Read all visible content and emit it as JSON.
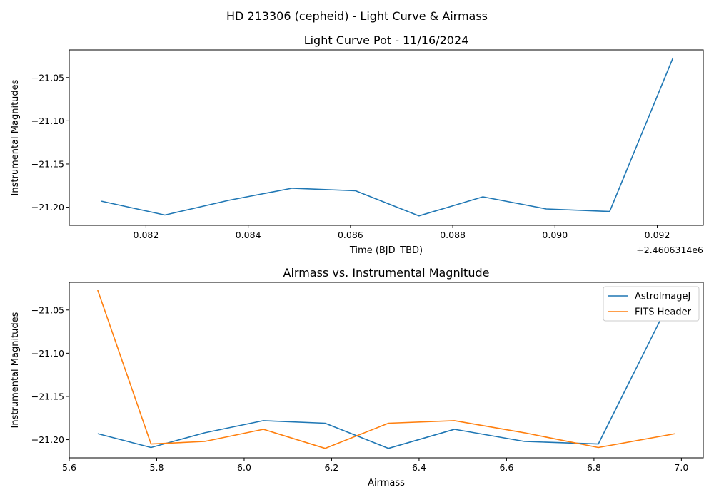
{
  "figure": {
    "suptitle": "HD 213306 (cepheid) - Light Curve & Airmass"
  },
  "chart_data": [
    {
      "type": "line",
      "title": "Light Curve Pot - 11/16/2024",
      "xlabel": "Time (BJD_TBD)",
      "ylabel": "Instrumental Magnitudes",
      "x_offset_label": "+2.4606314e6",
      "xlim": [
        0.0805,
        0.0929
      ],
      "ylim": [
        -21.221,
        -21.018
      ],
      "xticks": [
        0.082,
        0.084,
        0.086,
        0.088,
        0.09,
        0.092
      ],
      "xtick_labels": [
        "0.082",
        "0.084",
        "0.086",
        "0.088",
        "0.090",
        "0.092"
      ],
      "yticks": [
        -21.05,
        -21.1,
        -21.15,
        -21.2
      ],
      "ytick_labels": [
        "−21.05",
        "−21.10",
        "−21.15",
        "−21.20"
      ],
      "grid": false,
      "series": [
        {
          "color": "#1f77b4",
          "x": [
            0.08113,
            0.08237,
            0.08362,
            0.08486,
            0.0861,
            0.08734,
            0.08859,
            0.08983,
            0.09107,
            0.09231
          ],
          "y": [
            -21.193,
            -21.209,
            -21.192,
            -21.178,
            -21.181,
            -21.21,
            -21.188,
            -21.202,
            -21.205,
            -21.027
          ]
        }
      ]
    },
    {
      "type": "line",
      "title": "Airmass vs. Instrumental Magnitude",
      "xlabel": "Airmass",
      "ylabel": "Instrumental Magnitudes",
      "xlim": [
        5.6,
        7.05
      ],
      "ylim": [
        -21.221,
        -21.018
      ],
      "xticks": [
        5.6,
        5.8,
        6.0,
        6.2,
        6.4,
        6.6,
        6.8,
        7.0
      ],
      "xtick_labels": [
        "5.6",
        "5.8",
        "6.0",
        "6.2",
        "6.4",
        "6.6",
        "6.8",
        "7.0"
      ],
      "yticks": [
        -21.05,
        -21.1,
        -21.15,
        -21.2
      ],
      "ytick_labels": [
        "−21.05",
        "−21.10",
        "−21.15",
        "−21.20"
      ],
      "grid": false,
      "legend_position": "top-right",
      "series": [
        {
          "name": "AstroImageJ",
          "color": "#1f77b4",
          "x": [
            5.665,
            5.787,
            5.91,
            6.044,
            6.185,
            6.33,
            6.481,
            6.641,
            6.81,
            6.986
          ],
          "y": [
            -21.193,
            -21.209,
            -21.192,
            -21.178,
            -21.181,
            -21.21,
            -21.188,
            -21.202,
            -21.205,
            -21.027
          ]
        },
        {
          "name": "FITS Header",
          "color": "#ff7f0e",
          "x": [
            5.665,
            5.787,
            5.91,
            6.044,
            6.185,
            6.33,
            6.481,
            6.641,
            6.81,
            6.986
          ],
          "y": [
            -21.027,
            -21.205,
            -21.202,
            -21.188,
            -21.21,
            -21.181,
            -21.178,
            -21.192,
            -21.209,
            -21.193
          ]
        }
      ]
    }
  ]
}
